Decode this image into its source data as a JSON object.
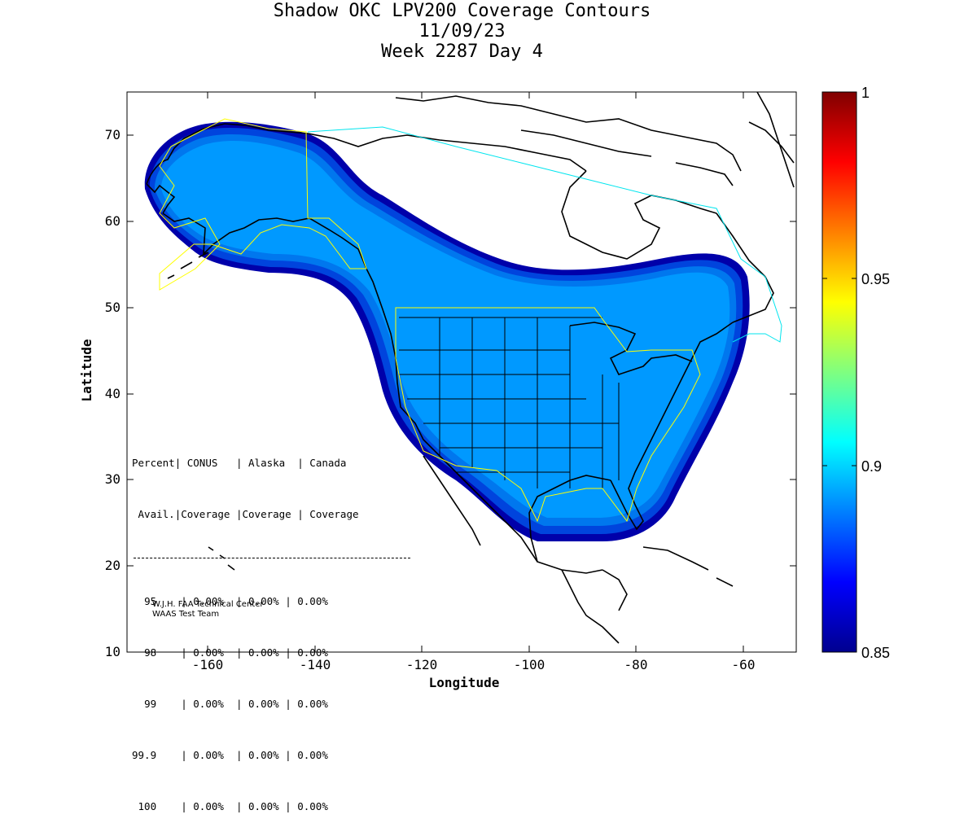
{
  "title": {
    "line1": "Shadow OKC LPV200 Coverage Contours",
    "line2": "11/09/23",
    "line3": "Week 2287 Day 4"
  },
  "axes": {
    "xlabel": "Longitude",
    "ylabel": "Latitude",
    "x_ticks": [
      "-160",
      "-140",
      "-120",
      "-100",
      "-80",
      "-60"
    ],
    "y_ticks": [
      "70",
      "60",
      "50",
      "40",
      "30",
      "20",
      "10"
    ],
    "xlim": [
      -175,
      -50
    ],
    "ylim": [
      10,
      75
    ]
  },
  "colorbar": {
    "min": 0.85,
    "max": 1,
    "tick_labels": [
      "1",
      "0.95",
      "0.9",
      "0.85"
    ],
    "colormap": "jet"
  },
  "stats_table": {
    "header1": [
      "Percent",
      "CONUS",
      "Alaska",
      "Canada"
    ],
    "header2": [
      "Avail.",
      "Coverage",
      "Coverage",
      "Coverage"
    ],
    "rows": [
      [
        "95",
        "0.00%",
        "0.00%",
        "0.00%"
      ],
      [
        "98",
        "0.00%",
        "0.00%",
        "0.00%"
      ],
      [
        "99",
        "0.00%",
        "0.00%",
        "0.00%"
      ],
      [
        "99.9",
        "0.00%",
        "0.00%",
        "0.00%"
      ],
      [
        "100",
        "0.00%",
        "0.00%",
        "0.00%"
      ]
    ]
  },
  "credit": {
    "line1": "W.J.H. FAA Technical Center",
    "line2": "WAAS Test Team"
  },
  "colors": {
    "coverage_main": "#0099ff",
    "coverage_band1": "#0077ee",
    "coverage_band2": "#0044dd",
    "coverage_edge": "#0000aa",
    "boundary_conus": "#ffff00",
    "boundary_canada": "#00e5ee"
  }
}
